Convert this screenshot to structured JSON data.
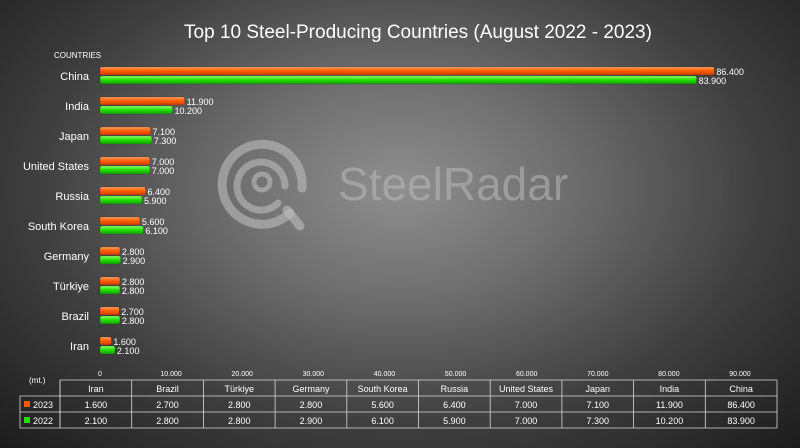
{
  "chart_data": {
    "type": "bar",
    "orientation": "horizontal",
    "title": "Top 10 Steel-Producing Countries (August 2022 - 2023)",
    "ylabel": "COUNTRIES",
    "unit_label": "(mt.)",
    "categories": [
      "China",
      "India",
      "Japan",
      "United States",
      "Russia",
      "South Korea",
      "Germany",
      "Türkiye",
      "Brazil",
      "Iran"
    ],
    "series": [
      {
        "name": "2023",
        "color": "#ff5a00",
        "values": [
          86.4,
          11.9,
          7.1,
          7.0,
          6.4,
          5.6,
          2.8,
          2.8,
          2.7,
          1.6
        ],
        "labels": [
          "86.400",
          "11.900",
          "7.100",
          "7.000",
          "6.400",
          "5.600",
          "2.800",
          "2.800",
          "2.700",
          "1.600"
        ]
      },
      {
        "name": "2022",
        "color": "#22dd00",
        "values": [
          83.9,
          10.2,
          7.3,
          7.0,
          5.9,
          6.1,
          2.9,
          2.8,
          2.8,
          2.1
        ],
        "labels": [
          "83.900",
          "10.200",
          "7.300",
          "7.000",
          "5.900",
          "6.100",
          "2.900",
          "2.800",
          "2.800",
          "2.100"
        ]
      }
    ],
    "xlim": [
      0,
      90
    ],
    "xticks": [
      0,
      10,
      20,
      30,
      40,
      50,
      60,
      70,
      80,
      90
    ],
    "xtick_labels": [
      "0",
      "10.000",
      "20.000",
      "30.000",
      "40.000",
      "50.000",
      "60.000",
      "70.000",
      "80.000",
      "90.000"
    ],
    "legend": "data table",
    "grid": false,
    "data_table": {
      "columns": [
        "Iran",
        "Brazil",
        "Türkiye",
        "Germany",
        "South Korea",
        "Russia",
        "United States",
        "Japan",
        "India",
        "China"
      ],
      "rows": [
        {
          "series": "2023",
          "color": "#ff5a00",
          "values": [
            "1.600",
            "2.700",
            "2.800",
            "2.800",
            "5.600",
            "6.400",
            "7.000",
            "7.100",
            "11.900",
            "86.400"
          ]
        },
        {
          "series": "2022",
          "color": "#22dd00",
          "values": [
            "2.100",
            "2.800",
            "2.800",
            "2.900",
            "6.100",
            "5.900",
            "7.000",
            "7.300",
            "10.200",
            "83.900"
          ]
        }
      ]
    }
  },
  "watermark": {
    "text": "SteelRadar",
    "icon": "steelradar-logo-icon"
  }
}
